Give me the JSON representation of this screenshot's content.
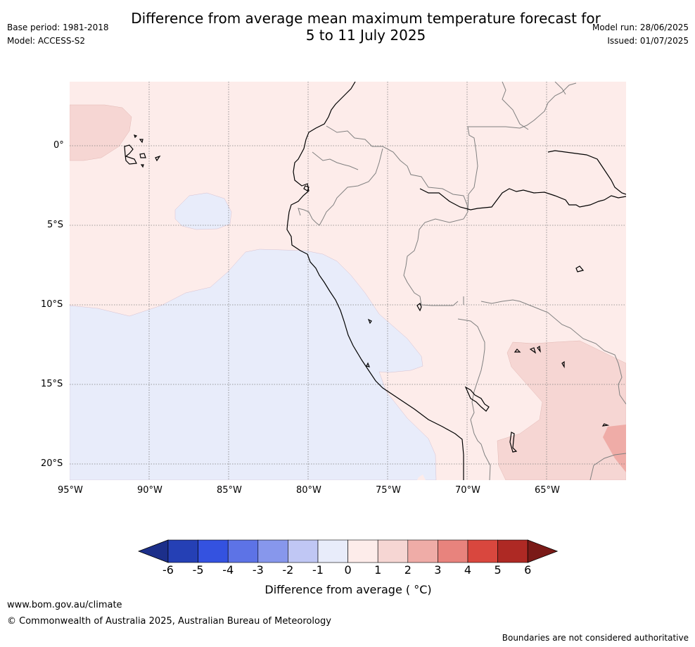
{
  "header": {
    "title_line1": "Difference from average mean maximum temperature forecast for",
    "title_line2": "5 to 11 July 2025",
    "base_period": "Base period: 1981-2018",
    "model": "Model: ACCESS-S2",
    "model_run": "Model run: 28/06/2025",
    "issued": "Issued: 01/07/2025"
  },
  "map": {
    "lon_labels": [
      "95°W",
      "90°W",
      "85°W",
      "80°W",
      "75°W",
      "70°W",
      "65°W"
    ],
    "lat_labels": [
      "0°",
      "5°S",
      "10°S",
      "15°S",
      "20°S"
    ],
    "colors": {
      "band_0_1": "#fdecea",
      "band_1_2": "#f6d6d3",
      "band_2_3": "#efaca7",
      "band_m1_0": "#e8ecfa"
    }
  },
  "colorbar": {
    "title": "Difference from average ( °C)",
    "ticks": [
      "-6",
      "-5",
      "-4",
      "-3",
      "-2",
      "-1",
      "0",
      "1",
      "2",
      "3",
      "4",
      "5",
      "6"
    ],
    "colors": [
      "#1c2f8a",
      "#2540b5",
      "#3452e0",
      "#5d73e6",
      "#8797ec",
      "#c0c7f4",
      "#e8ecfa",
      "#fdecea",
      "#f6d6d3",
      "#efaca7",
      "#e8837d",
      "#d9473e",
      "#ae2924",
      "#7a1a17"
    ]
  },
  "footer": {
    "url": "www.bom.gov.au/climate",
    "copyright": "© Commonwealth of Australia 2025, Australian Bureau of Meteorology",
    "disclaimer": "Boundaries are not considered authoritative"
  }
}
